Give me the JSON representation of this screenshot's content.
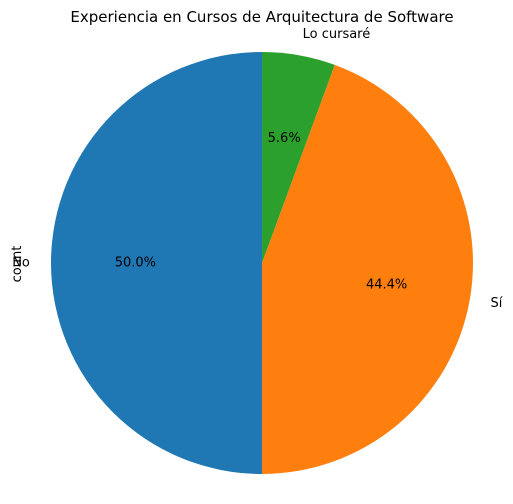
{
  "chart_data": {
    "type": "pie",
    "title": "Experiencia en Cursos de Arquitectura de Software",
    "ylabel": "count",
    "labels": [
      "No",
      "Sí",
      "Lo cursaré"
    ],
    "values": [
      50.0,
      44.4,
      5.6
    ],
    "autopct": [
      "50.0%",
      "44.4%",
      "5.6%"
    ],
    "colors": [
      "#1f77b4",
      "#ff7f0e",
      "#2ca02c"
    ],
    "start_angle_deg": 90,
    "direction": "counterclockwise"
  }
}
